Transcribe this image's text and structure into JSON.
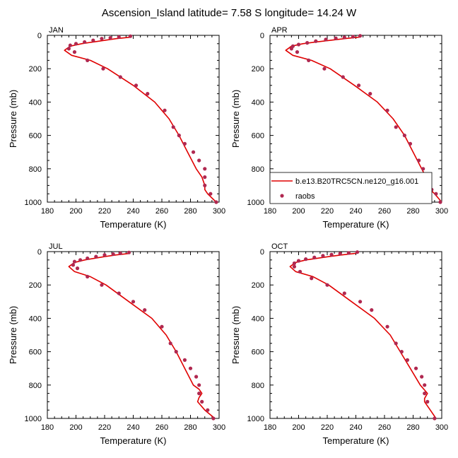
{
  "title": "Ascension_Island  latitude= 7.58 S longitude= 14.24 W",
  "legend": {
    "model_label": "b.e13.B20TRC5CN.ne120_g16.001",
    "obs_label": "raobs",
    "model_color": "#e00000",
    "obs_color": "#b02850"
  },
  "chart_data": [
    {
      "type": "line",
      "panel": "JAN",
      "xlabel": "Temperature (K)",
      "ylabel": "Pressure (mb)",
      "xlim": [
        180,
        300
      ],
      "ylim": [
        1000,
        0
      ],
      "xticks": [
        180,
        200,
        220,
        240,
        260,
        280,
        300
      ],
      "yticks": [
        0,
        200,
        400,
        600,
        800,
        1000
      ],
      "show_legend": false,
      "series": [
        {
          "name": "b.e13.B20TRC5CN.ne120_g16.001",
          "style": "line",
          "temperature": [
            239,
            228,
            220,
            212,
            204,
            196,
            192,
            197,
            210,
            222,
            240,
            255,
            265,
            272,
            278,
            284,
            288,
            290,
            290,
            292,
            298
          ],
          "pressure": [
            10,
            20,
            30,
            40,
            50,
            65,
            90,
            120,
            150,
            200,
            300,
            400,
            500,
            600,
            700,
            800,
            850,
            900,
            925,
            950,
            1000
          ]
        },
        {
          "name": "raobs",
          "style": "markers",
          "temperature": [
            238,
            230,
            224,
            218,
            212,
            206,
            200,
            196,
            195,
            199,
            208,
            219,
            231,
            242,
            250,
            262,
            268,
            272,
            276,
            282,
            286,
            290,
            290,
            290,
            294,
            298
          ],
          "pressure": [
            5,
            10,
            15,
            20,
            30,
            40,
            50,
            60,
            80,
            100,
            150,
            200,
            250,
            300,
            350,
            450,
            550,
            600,
            650,
            700,
            750,
            800,
            850,
            900,
            950,
            1000
          ]
        }
      ]
    },
    {
      "type": "line",
      "panel": "APR",
      "xlabel": "Temperature (K)",
      "ylabel": "Pressure (mb)",
      "xlim": [
        180,
        300
      ],
      "ylim": [
        1000,
        0
      ],
      "xticks": [
        180,
        200,
        220,
        240,
        260,
        280,
        300
      ],
      "yticks": [
        0,
        200,
        400,
        600,
        800,
        1000
      ],
      "show_legend": true,
      "series": [
        {
          "name": "b.e13.B20TRC5CN.ne120_g16.001",
          "style": "line",
          "temperature": [
            243,
            232,
            222,
            212,
            203,
            195,
            191,
            196,
            209,
            222,
            239,
            255,
            266,
            274,
            280,
            286,
            289,
            290,
            292,
            295,
            300
          ],
          "pressure": [
            10,
            20,
            30,
            40,
            50,
            65,
            90,
            120,
            150,
            200,
            300,
            400,
            500,
            600,
            700,
            800,
            850,
            900,
            925,
            950,
            1000
          ]
        },
        {
          "name": "raobs",
          "style": "markers",
          "temperature": [
            243,
            238,
            232,
            226,
            219,
            212,
            206,
            200,
            196,
            195,
            199,
            207,
            218,
            231,
            242,
            250,
            262,
            268,
            274,
            278,
            284,
            287,
            290,
            291,
            293,
            296,
            299
          ],
          "pressure": [
            3,
            8,
            12,
            18,
            25,
            35,
            45,
            55,
            65,
            80,
            100,
            150,
            200,
            250,
            300,
            350,
            450,
            550,
            600,
            650,
            750,
            800,
            850,
            900,
            925,
            950,
            1000
          ]
        }
      ]
    },
    {
      "type": "line",
      "panel": "JUL",
      "xlabel": "Temperature (K)",
      "ylabel": "Pressure (mb)",
      "xlim": [
        180,
        300
      ],
      "ylim": [
        1000,
        0
      ],
      "xticks": [
        180,
        200,
        220,
        240,
        260,
        280,
        300
      ],
      "yticks": [
        0,
        200,
        400,
        600,
        800,
        1000
      ],
      "show_legend": false,
      "series": [
        {
          "name": "b.e13.B20TRC5CN.ne120_g16.001",
          "style": "line",
          "temperature": [
            238,
            228,
            220,
            213,
            206,
            199,
            195,
            199,
            210,
            221,
            237,
            253,
            263,
            270,
            276,
            282,
            286,
            288,
            286,
            285,
            290,
            297
          ],
          "pressure": [
            10,
            20,
            30,
            40,
            50,
            65,
            90,
            120,
            150,
            200,
            300,
            400,
            500,
            600,
            700,
            800,
            825,
            850,
            875,
            900,
            950,
            1000
          ]
        },
        {
          "name": "raobs",
          "style": "markers",
          "temperature": [
            237,
            231,
            226,
            220,
            214,
            208,
            203,
            199,
            198,
            201,
            208,
            218,
            230,
            240,
            248,
            260,
            266,
            270,
            276,
            280,
            284,
            286,
            286,
            288,
            292,
            296
          ],
          "pressure": [
            5,
            10,
            15,
            20,
            30,
            40,
            50,
            60,
            80,
            100,
            150,
            200,
            250,
            300,
            350,
            450,
            550,
            600,
            650,
            700,
            750,
            800,
            850,
            900,
            950,
            1000
          ]
        }
      ]
    },
    {
      "type": "line",
      "panel": "OCT",
      "xlabel": "Temperature (K)",
      "ylabel": "Pressure (mb)",
      "xlim": [
        180,
        300
      ],
      "ylim": [
        1000,
        0
      ],
      "xticks": [
        180,
        200,
        220,
        240,
        260,
        280,
        300
      ],
      "yticks": [
        0,
        200,
        400,
        600,
        800,
        1000
      ],
      "show_legend": false,
      "series": [
        {
          "name": "b.e13.B20TRC5CN.ne120_g16.001",
          "style": "line",
          "temperature": [
            240,
            230,
            221,
            213,
            205,
            198,
            194,
            198,
            210,
            221,
            237,
            253,
            264,
            271,
            278,
            285,
            290,
            288,
            288,
            292,
            296
          ],
          "pressure": [
            10,
            20,
            30,
            40,
            50,
            65,
            90,
            120,
            150,
            200,
            300,
            400,
            500,
            600,
            700,
            800,
            850,
            880,
            900,
            950,
            1000
          ]
        },
        {
          "name": "raobs",
          "style": "markers",
          "temperature": [
            241,
            235,
            229,
            223,
            217,
            211,
            205,
            200,
            197,
            197,
            201,
            209,
            220,
            232,
            243,
            251,
            262,
            268,
            272,
            276,
            282,
            286,
            288,
            288,
            290,
            295
          ],
          "pressure": [
            3,
            8,
            12,
            18,
            25,
            35,
            45,
            55,
            70,
            90,
            120,
            160,
            200,
            250,
            300,
            350,
            450,
            550,
            600,
            650,
            700,
            750,
            800,
            850,
            900,
            1000
          ]
        }
      ]
    }
  ]
}
